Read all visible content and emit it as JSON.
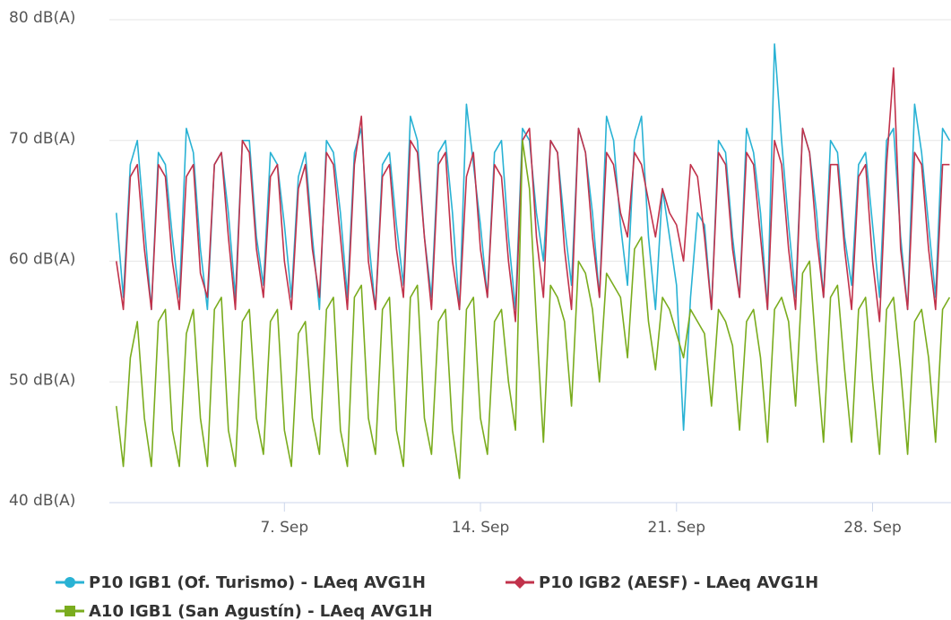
{
  "chart_data": {
    "type": "line",
    "x": [
      1,
      1.25,
      1.5,
      1.75,
      2,
      2.25,
      2.5,
      2.75,
      3,
      3.25,
      3.5,
      3.75,
      4,
      4.25,
      4.5,
      4.75,
      5,
      5.25,
      5.5,
      5.75,
      6,
      6.25,
      6.5,
      6.75,
      7,
      7.25,
      7.5,
      7.75,
      8,
      8.25,
      8.5,
      8.75,
      9,
      9.25,
      9.5,
      9.75,
      10,
      10.25,
      10.5,
      10.75,
      11,
      11.25,
      11.5,
      11.75,
      12,
      12.25,
      12.5,
      12.75,
      13,
      13.25,
      13.5,
      13.75,
      14,
      14.25,
      14.5,
      14.75,
      15,
      15.25,
      15.5,
      15.75,
      16,
      16.25,
      16.5,
      16.75,
      17,
      17.25,
      17.5,
      17.75,
      18,
      18.25,
      18.5,
      18.75,
      19,
      19.25,
      19.5,
      19.75,
      20,
      20.25,
      20.5,
      20.75,
      21,
      21.25,
      21.5,
      21.75,
      22,
      22.25,
      22.5,
      22.75,
      23,
      23.25,
      23.5,
      23.75,
      24,
      24.25,
      24.5,
      24.75,
      25,
      25.25,
      25.5,
      25.75,
      26,
      26.25,
      26.5,
      26.75,
      27,
      27.25,
      27.5,
      27.75,
      28,
      28.25,
      28.5,
      28.75,
      29,
      29.25,
      29.5,
      29.75,
      30,
      30.25,
      30.5,
      30.75
    ],
    "series": [
      {
        "name": "P10 IGB1 (Of. Turismo) - LAeq AVG1H",
        "color": "#29b2d4",
        "marker": "circle",
        "values": [
          64,
          57,
          68,
          70,
          63,
          56,
          69,
          68,
          62,
          57,
          71,
          69,
          61,
          56,
          68,
          69,
          64,
          57,
          70,
          70,
          62,
          58,
          69,
          68,
          63,
          57,
          67,
          69,
          62,
          56,
          70,
          69,
          64,
          57,
          69,
          71,
          62,
          56,
          68,
          69,
          63,
          58,
          72,
          70,
          62,
          57,
          69,
          70,
          64,
          56,
          73,
          68,
          63,
          57,
          69,
          70,
          62,
          56,
          71,
          70,
          64,
          60,
          70,
          69,
          63,
          58,
          71,
          69,
          64,
          57,
          72,
          70,
          63,
          58,
          70,
          72,
          62,
          56,
          66,
          62,
          58,
          46,
          57,
          64,
          63,
          56,
          70,
          69,
          62,
          57,
          71,
          69,
          64,
          56,
          78,
          70,
          63,
          57,
          71,
          69,
          64,
          57,
          70,
          69,
          62,
          58,
          68,
          69,
          63,
          57,
          70,
          71,
          62,
          56,
          73,
          69,
          63,
          57,
          71,
          70
        ]
      },
      {
        "name": "P10 IGB2 (AESF) - LAeq AVG1H",
        "color": "#c1324b",
        "marker": "diamond",
        "values": [
          60,
          56,
          67,
          68,
          61,
          56,
          68,
          67,
          60,
          56,
          67,
          68,
          59,
          57,
          68,
          69,
          62,
          56,
          70,
          69,
          61,
          57,
          67,
          68,
          60,
          56,
          66,
          68,
          61,
          57,
          69,
          68,
          62,
          56,
          68,
          72,
          60,
          56,
          67,
          68,
          61,
          57,
          70,
          69,
          62,
          56,
          68,
          69,
          60,
          56,
          67,
          69,
          61,
          57,
          68,
          67,
          60,
          55,
          70,
          71,
          62,
          57,
          70,
          69,
          61,
          56,
          71,
          69,
          62,
          57,
          69,
          68,
          64,
          62,
          69,
          68,
          65,
          62,
          66,
          64,
          63,
          60,
          68,
          67,
          62,
          56,
          69,
          68,
          61,
          57,
          69,
          68,
          62,
          56,
          70,
          68,
          61,
          56,
          71,
          69,
          62,
          57,
          68,
          68,
          61,
          56,
          67,
          68,
          60,
          55,
          68,
          76,
          61,
          56,
          69,
          68,
          61,
          56,
          68,
          68
        ]
      },
      {
        "name": "A10 IGB1 (San Agustín) - LAeq AVG1H",
        "color": "#7aac1e",
        "marker": "square",
        "values": [
          48,
          43,
          52,
          55,
          47,
          43,
          55,
          56,
          46,
          43,
          54,
          56,
          47,
          43,
          56,
          57,
          46,
          43,
          55,
          56,
          47,
          44,
          55,
          56,
          46,
          43,
          54,
          55,
          47,
          44,
          56,
          57,
          46,
          43,
          57,
          58,
          47,
          44,
          56,
          57,
          46,
          43,
          57,
          58,
          47,
          44,
          55,
          56,
          46,
          42,
          56,
          57,
          47,
          44,
          55,
          56,
          50,
          46,
          70,
          66,
          55,
          45,
          58,
          57,
          55,
          48,
          60,
          59,
          56,
          50,
          59,
          58,
          57,
          52,
          61,
          62,
          55,
          51,
          57,
          56,
          54,
          52,
          56,
          55,
          54,
          48,
          56,
          55,
          53,
          46,
          55,
          56,
          52,
          45,
          56,
          57,
          55,
          48,
          59,
          60,
          52,
          45,
          57,
          58,
          51,
          45,
          56,
          57,
          50,
          44,
          56,
          57,
          51,
          44,
          55,
          56,
          52,
          45,
          56,
          57
        ]
      }
    ],
    "xlim": [
      0.75,
      30.8
    ],
    "xticks": [
      {
        "value": 7,
        "label": "7. Sep"
      },
      {
        "value": 14,
        "label": "14. Sep"
      },
      {
        "value": 21,
        "label": "21. Sep"
      },
      {
        "value": 28,
        "label": "28. Sep"
      }
    ],
    "ylim": [
      40,
      80
    ],
    "yticks": [
      {
        "value": 40,
        "label": "40 dB(A)"
      },
      {
        "value": 50,
        "label": "50 dB(A)"
      },
      {
        "value": 60,
        "label": "60 dB(A)"
      },
      {
        "value": 70,
        "label": "70 dB(A)"
      },
      {
        "value": 80,
        "label": "80 dB(A)"
      }
    ],
    "grid": true
  }
}
